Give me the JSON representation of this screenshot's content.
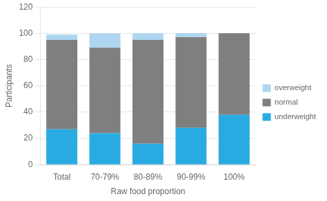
{
  "chart_data": {
    "type": "bar",
    "categories": [
      "Total",
      "70-79%",
      "80-89%",
      "90-99%",
      "100%"
    ],
    "series": [
      {
        "name": "underweight",
        "color": "#29ABE2",
        "values": [
          27,
          24,
          16,
          28,
          38
        ]
      },
      {
        "name": "normal",
        "color": "#7f7f7f",
        "values": [
          68,
          65,
          79,
          69,
          62
        ]
      },
      {
        "name": "overweight",
        "color": "#AED6F1",
        "values": [
          4,
          11,
          5,
          3,
          0
        ]
      }
    ],
    "xlabel": "Raw food proportion",
    "ylabel": "Participants",
    "ylim": [
      0,
      120
    ],
    "yticks": [
      0,
      20,
      40,
      60,
      80,
      100,
      120
    ],
    "grid": true,
    "stacked": true,
    "legend": "right"
  }
}
